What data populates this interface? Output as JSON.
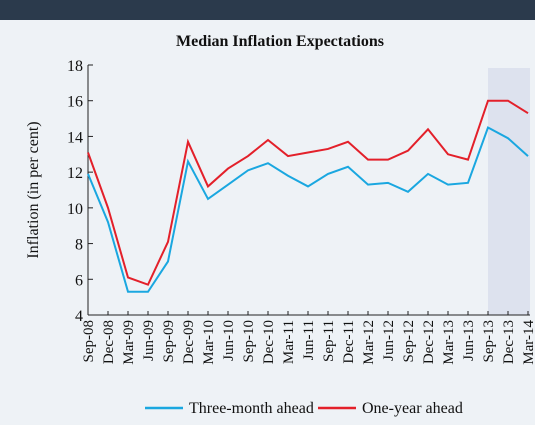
{
  "chart_data": {
    "type": "line",
    "title": "Median Inflation Expectations",
    "ylabel": "Inflation (in per cent)",
    "categories": [
      "Sep-08",
      "Dec-08",
      "Mar-09",
      "Jun-09",
      "Sep-09",
      "Dec-09",
      "Mar-10",
      "Jun-10",
      "Sep-10",
      "Dec-10",
      "Mar-11",
      "Jun-11",
      "Sep-11",
      "Dec-11",
      "Mar-12",
      "Jun-12",
      "Sep-12",
      "Dec-12",
      "Mar-13",
      "Jun-13",
      "Sep-13",
      "Dec-13",
      "Mar-14"
    ],
    "series": [
      {
        "name": "Three-month ahead",
        "color": "#1aa7e0",
        "values": [
          11.9,
          9.2,
          5.3,
          5.3,
          7.0,
          12.6,
          10.5,
          11.3,
          12.1,
          12.5,
          11.8,
          11.2,
          11.9,
          12.3,
          11.3,
          11.4,
          10.9,
          11.9,
          11.3,
          11.4,
          14.5,
          13.9,
          12.9
        ]
      },
      {
        "name": "One-year ahead",
        "color": "#e3202a",
        "values": [
          13.1,
          10.0,
          6.1,
          5.7,
          8.1,
          13.7,
          11.2,
          12.2,
          12.9,
          13.8,
          12.9,
          13.1,
          13.3,
          13.7,
          12.7,
          12.7,
          13.2,
          14.4,
          13.0,
          12.7,
          16.0,
          16.0,
          15.3
        ]
      }
    ],
    "ylim": [
      4,
      18
    ],
    "yticks": [
      4,
      6,
      8,
      10,
      12,
      14,
      16,
      18
    ],
    "highlight_from": "Sep-13",
    "highlight_color": "#dde2ee",
    "legend": "bottom"
  }
}
